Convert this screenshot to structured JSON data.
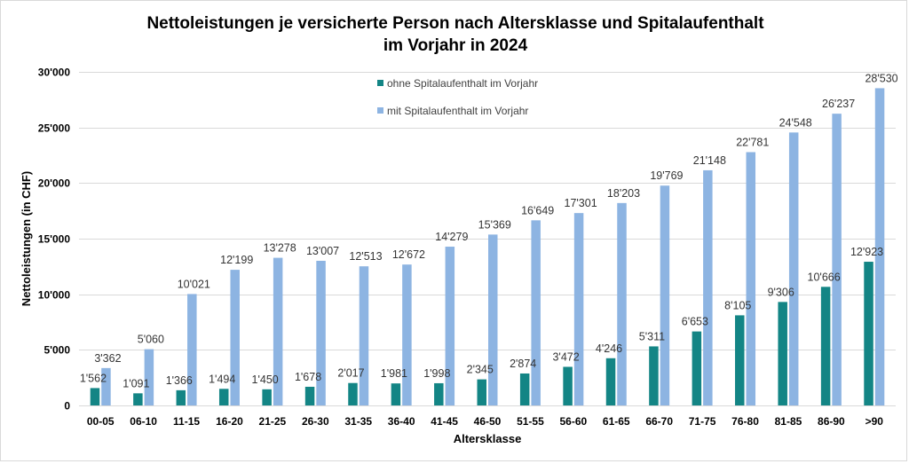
{
  "chart_data": {
    "type": "bar",
    "title_lines": [
      "Nettoleistungen je versicherte Person nach Altersklasse und Spitalaufenthalt",
      "im Vorjahr in 2024"
    ],
    "xlabel": "Altersklasse",
    "ylabel": "Nettoleistungen (in CHF)",
    "ylim": [
      0,
      30000
    ],
    "yticks": [
      0,
      5000,
      10000,
      15000,
      20000,
      25000,
      30000
    ],
    "ytick_labels": [
      "0",
      "5'000",
      "10'000",
      "15'000",
      "20'000",
      "25'000",
      "30'000"
    ],
    "grid": true,
    "legend_position": "top-center",
    "categories": [
      "00-05",
      "06-10",
      "11-15",
      "16-20",
      "21-25",
      "26-30",
      "31-35",
      "36-40",
      "41-45",
      "46-50",
      "51-55",
      "56-60",
      "61-65",
      "66-70",
      "71-75",
      "76-80",
      "81-85",
      "86-90",
      ">90"
    ],
    "series": [
      {
        "name": "ohne Spitalaufenthalt im Vorjahr",
        "color": "#138585",
        "values": [
          1562,
          1091,
          1366,
          1494,
          1450,
          1678,
          2017,
          1981,
          1998,
          2345,
          2874,
          3472,
          4246,
          5311,
          6653,
          8105,
          9306,
          10666,
          12923
        ],
        "labels": [
          "1'562",
          "1'091",
          "1'366",
          "1'494",
          "1'450",
          "1'678",
          "2'017",
          "1'981",
          "1'998",
          "2'345",
          "2'874",
          "3'472",
          "4'246",
          "5'311",
          "6'653",
          "8'105",
          "9'306",
          "10'666",
          "12'923"
        ]
      },
      {
        "name": "mit Spitalaufenthalt im Vorjahr",
        "color": "#8db4e2",
        "values": [
          3362,
          5060,
          10021,
          12199,
          13278,
          13007,
          12513,
          12672,
          14279,
          15369,
          16649,
          17301,
          18203,
          19769,
          21148,
          22781,
          24548,
          26237,
          28530
        ],
        "labels": [
          "3'362",
          "5'060",
          "10'021",
          "12'199",
          "13'278",
          "13'007",
          "12'513",
          "12'672",
          "14'279",
          "15'369",
          "16'649",
          "17'301",
          "18'203",
          "19'769",
          "21'148",
          "22'781",
          "24'548",
          "26'237",
          "28'530"
        ]
      }
    ]
  }
}
